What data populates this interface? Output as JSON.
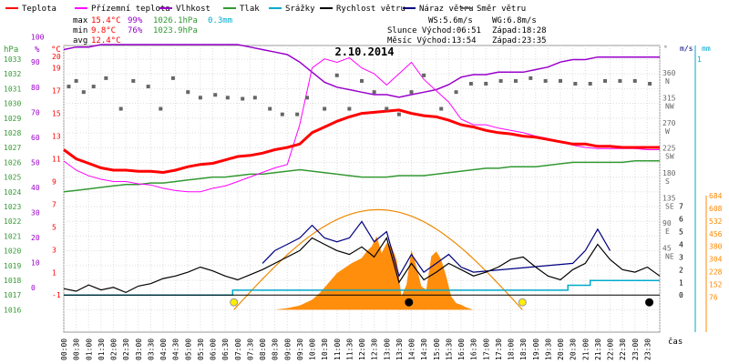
{
  "chart_data": {
    "type": "line",
    "title": "2.10.2014",
    "xlabel": "čas",
    "x_range_hours": [
      0,
      24
    ],
    "x_ticks": [
      "00:00",
      "00:30",
      "01:00",
      "01:30",
      "02:00",
      "02:30",
      "03:00",
      "03:30",
      "04:00",
      "04:30",
      "05:00",
      "05:30",
      "06:00",
      "06:30",
      "07:00",
      "07:30",
      "08:00",
      "08:30",
      "09:00",
      "09:30",
      "10:00",
      "10:30",
      "11:00",
      "11:30",
      "12:00",
      "12:30",
      "13:00",
      "13:30",
      "14:00",
      "14:30",
      "15:00",
      "15:30",
      "16:00",
      "16:30",
      "17:00",
      "17:30",
      "18:00",
      "18:30",
      "19:00",
      "19:30",
      "20:00",
      "20:30",
      "21:00",
      "21:30",
      "22:00",
      "22:30",
      "23:00",
      "23:30"
    ],
    "legend": [
      {
        "key": "teplota",
        "label": "Teplota",
        "color": "#ff0000"
      },
      {
        "key": "prizemni",
        "label": "Přízemní teplota",
        "color": "#ff00ff"
      },
      {
        "key": "vlhkost",
        "label": "Vlhkost",
        "color": "#9900cc"
      },
      {
        "key": "tlak",
        "label": "Tlak",
        "color": "#339933"
      },
      {
        "key": "srazky",
        "label": "Srážky",
        "color": "#00aacc"
      },
      {
        "key": "rychlost",
        "label": "Rychlost větru",
        "color": "#000000"
      },
      {
        "key": "naraz",
        "label": "Náraz větru",
        "color": "#000080"
      },
      {
        "key": "smer",
        "label": "Směr větru",
        "color": "#666666"
      }
    ],
    "stats": {
      "max": {
        "label": "max",
        "temp": "15.4°C",
        "hum": "99%",
        "press": "1026.1hPa",
        "rain": "0.3mm"
      },
      "min": {
        "label": "min",
        "temp": "9.8°C",
        "hum": "76%",
        "press": "1023.9hPa"
      },
      "avg": {
        "label": "avg",
        "temp": "12.4°C"
      }
    },
    "info": {
      "ws": "WS:5.6m/s",
      "wg": "WG:6.8m/s",
      "sun": "Slunce Východ:06:51",
      "sunset": "Západ:18:28",
      "moon": "Měsíc Východ:13:54",
      "moonset": "Západ:23:35"
    },
    "axes": {
      "hpa": {
        "label": "hPa",
        "ticks": [
          "1033",
          "1032",
          "1031",
          "1030",
          "1029",
          "1028",
          "1027",
          "1026",
          "1025",
          "1024",
          "1023",
          "1022",
          "1021",
          "1020",
          "1019",
          "1018",
          "1017",
          "1016"
        ],
        "range": [
          1016,
          1033
        ]
      },
      "pct": {
        "label": "%",
        "ticks": [
          "100",
          "90",
          "80",
          "70",
          "60",
          "50",
          "40",
          "30",
          "20",
          "10",
          "0"
        ],
        "range": [
          0,
          100
        ]
      },
      "deg": {
        "label": "°C",
        "ticks": [
          "20",
          "19",
          "17",
          "15",
          "13",
          "11",
          "9",
          "7",
          "5",
          "3",
          "1",
          "-1"
        ],
        "range": [
          -1,
          20
        ]
      },
      "dir": {
        "label": "°",
        "ticks": [
          [
            "360",
            "N"
          ],
          [
            "315",
            "NW"
          ],
          [
            "270",
            "W"
          ],
          [
            "225",
            "SW"
          ],
          [
            "180",
            "S"
          ],
          [
            "135",
            "SE"
          ],
          [
            "90",
            "E"
          ],
          [
            "45",
            "NE"
          ]
        ]
      },
      "ms": {
        "label": "m/s",
        "ticks": [
          "7",
          "6",
          "5",
          "4",
          "3",
          "2",
          "1",
          "0"
        ],
        "range": [
          0,
          7
        ]
      },
      "mm": {
        "label": "mm",
        "ticks": [
          "1"
        ]
      },
      "rad": {
        "ticks": [
          "684",
          "608",
          "532",
          "456",
          "380",
          "304",
          "228",
          "152",
          "76"
        ],
        "range": [
          0,
          684
        ]
      }
    },
    "series": {
      "teplota": {
        "x": [
          0,
          0.5,
          1,
          1.5,
          2,
          2.5,
          3,
          3.5,
          4,
          4.5,
          5,
          5.5,
          6,
          6.5,
          7,
          7.5,
          8,
          8.5,
          9,
          9.5,
          10,
          10.5,
          11,
          11.5,
          12,
          12.5,
          13,
          13.5,
          14,
          14.5,
          15,
          15.5,
          16,
          16.5,
          17,
          17.5,
          18,
          18.5,
          19,
          19.5,
          20,
          20.5,
          21,
          21.5,
          22,
          22.5,
          23,
          23.5,
          24
        ],
        "y": [
          11.8,
          11.0,
          10.6,
          10.2,
          10.0,
          10.0,
          9.9,
          9.9,
          9.8,
          10.0,
          10.3,
          10.5,
          10.6,
          10.9,
          11.2,
          11.3,
          11.5,
          11.8,
          12.0,
          12.3,
          13.3,
          13.8,
          14.3,
          14.7,
          15.0,
          15.1,
          15.2,
          15.3,
          15.0,
          14.8,
          14.7,
          14.4,
          14.0,
          13.8,
          13.5,
          13.3,
          13.2,
          13.0,
          12.9,
          12.7,
          12.5,
          12.3,
          12.3,
          12.1,
          12.1,
          12.0,
          12.0,
          12.0,
          12.0
        ]
      },
      "prizemni": {
        "x": [
          0,
          0.5,
          1,
          1.5,
          2,
          2.5,
          3,
          3.5,
          4,
          4.5,
          5,
          5.5,
          6,
          6.5,
          7,
          7.5,
          8,
          8.5,
          9,
          9.5,
          10,
          10.5,
          11,
          11.5,
          12,
          12.5,
          13,
          13.5,
          14,
          14.5,
          15,
          15.5,
          16,
          16.5,
          17,
          17.5,
          18,
          18.5,
          19,
          19.5,
          20,
          20.5,
          21,
          21.5,
          22,
          22.5,
          23,
          23.5,
          24
        ],
        "y": [
          10.8,
          10.0,
          9.5,
          9.2,
          9.0,
          9.0,
          8.8,
          8.7,
          8.4,
          8.2,
          8.1,
          8.1,
          8.4,
          8.6,
          9.0,
          9.4,
          9.8,
          10.2,
          10.5,
          14.0,
          19.0,
          19.8,
          19.5,
          19.9,
          19.0,
          18.5,
          17.5,
          18.5,
          19.5,
          18.0,
          17.0,
          16.0,
          14.5,
          14.0,
          14.0,
          13.7,
          13.5,
          13.3,
          13.0,
          12.8,
          12.5,
          12.2,
          12.0,
          11.9,
          11.9,
          11.9,
          11.9,
          11.8,
          11.8
        ]
      },
      "vlhkost": {
        "x": [
          0,
          0.5,
          1,
          1.5,
          2,
          2.5,
          3,
          3.5,
          4,
          4.5,
          5,
          5.5,
          6,
          6.5,
          7,
          7.5,
          8,
          8.5,
          9,
          9.5,
          10,
          10.5,
          11,
          11.5,
          12,
          12.5,
          13,
          13.5,
          14,
          14.5,
          15,
          15.5,
          16,
          16.5,
          17,
          17.5,
          18,
          18.5,
          19,
          19.5,
          20,
          20.5,
          21,
          21.5,
          22,
          22.5,
          23,
          23.5,
          24
        ],
        "y": [
          95,
          96,
          96,
          97,
          97,
          97,
          97,
          97,
          97,
          97,
          97,
          97,
          97,
          97,
          97,
          96,
          95,
          94,
          93,
          90,
          86,
          82,
          80,
          79,
          78,
          77,
          77,
          76,
          77,
          78,
          79,
          81,
          84,
          85,
          85,
          86,
          86,
          86,
          87,
          88,
          90,
          91,
          91,
          92,
          92,
          92,
          92,
          92,
          92
        ]
      },
      "tlak": {
        "x": [
          0,
          0.5,
          1,
          1.5,
          2,
          2.5,
          3,
          3.5,
          4,
          4.5,
          5,
          5.5,
          6,
          6.5,
          7,
          7.5,
          8,
          8.5,
          9,
          9.5,
          10,
          10.5,
          11,
          11.5,
          12,
          12.5,
          13,
          13.5,
          14,
          14.5,
          15,
          15.5,
          16,
          16.5,
          17,
          17.5,
          18,
          18.5,
          19,
          19.5,
          20,
          20.5,
          21,
          21.5,
          22,
          22.5,
          23,
          23.5,
          24
        ],
        "y": [
          1024.0,
          1024.1,
          1024.2,
          1024.3,
          1024.4,
          1024.5,
          1024.5,
          1024.6,
          1024.6,
          1024.7,
          1024.8,
          1024.9,
          1025.0,
          1025.0,
          1025.1,
          1025.2,
          1025.2,
          1025.3,
          1025.4,
          1025.5,
          1025.4,
          1025.3,
          1025.2,
          1025.1,
          1025.0,
          1025.0,
          1025.0,
          1025.1,
          1025.1,
          1025.1,
          1025.2,
          1025.3,
          1025.4,
          1025.5,
          1025.6,
          1025.6,
          1025.7,
          1025.7,
          1025.7,
          1025.8,
          1025.9,
          1026.0,
          1026.0,
          1026.0,
          1026.0,
          1026.0,
          1026.1,
          1026.1,
          1026.1
        ]
      },
      "srazky": {
        "x": [
          0,
          6.8,
          6.8,
          20.3,
          20.3,
          21.2,
          21.2,
          24
        ],
        "y": [
          0,
          0,
          0.1,
          0.1,
          0.2,
          0.2,
          0.3,
          0.3
        ]
      },
      "rychlost": {
        "x": [
          0,
          0.5,
          1,
          1.5,
          2,
          2.5,
          3,
          3.5,
          4,
          4.5,
          5,
          5.5,
          6,
          6.5,
          7,
          7.5,
          8,
          8.5,
          9,
          9.5,
          10,
          10.5,
          11,
          11.5,
          12,
          12.5,
          13,
          13.5,
          14,
          14.5,
          15,
          15.5,
          16,
          16.5,
          17,
          17.5,
          18,
          18.5,
          19,
          19.5,
          20,
          20.5,
          21,
          21.5,
          22,
          22.5,
          23,
          23.5,
          24
        ],
        "y": [
          0.5,
          0.3,
          0.8,
          0.4,
          0.6,
          0.2,
          0.7,
          0.9,
          1.3,
          1.5,
          1.8,
          2.2,
          1.9,
          1.5,
          1.2,
          1.6,
          2.0,
          2.5,
          3.0,
          3.5,
          4.5,
          4.0,
          3.5,
          3.2,
          3.8,
          3.0,
          4.5,
          1.0,
          2.5,
          1.2,
          1.8,
          2.5,
          2.0,
          1.5,
          1.8,
          2.2,
          2.8,
          3.0,
          2.2,
          1.5,
          1.2,
          2.0,
          2.5,
          4.0,
          2.8,
          2.0,
          1.8,
          2.2,
          1.5
        ]
      },
      "naraz": {
        "x": [
          8,
          8.5,
          9,
          9.5,
          10,
          10.5,
          11,
          11.5,
          12,
          12.5,
          13,
          13.5,
          14,
          14.5,
          15,
          15.5,
          16,
          16.5,
          20.5,
          21,
          21.5,
          22
        ],
        "y": [
          2.5,
          3.5,
          4.0,
          4.5,
          5.5,
          4.5,
          4.2,
          4.5,
          5.8,
          4.2,
          5.0,
          1.5,
          3.2,
          1.8,
          2.5,
          3.2,
          2.2,
          1.8,
          2.5,
          3.5,
          5.2,
          3.5
        ]
      },
      "smer_points": {
        "x": [
          0.2,
          0.5,
          0.8,
          1.2,
          1.7,
          2.3,
          2.8,
          3.4,
          3.9,
          4.4,
          5.0,
          5.5,
          6.1,
          6.6,
          7.2,
          7.7,
          8.3,
          8.8,
          9.4,
          9.8,
          10.5,
          11.0,
          11.5,
          12.0,
          12.5,
          13.0,
          13.5,
          14.0,
          14.5,
          15.2,
          15.8,
          16.4,
          17.0,
          17.6,
          18.2,
          18.8,
          19.4,
          20.0,
          20.6,
          21.2,
          21.8,
          22.4,
          23.0,
          23.6
        ],
        "y": [
          340,
          350,
          330,
          340,
          355,
          300,
          350,
          340,
          300,
          355,
          330,
          320,
          325,
          320,
          318,
          320,
          300,
          290,
          290,
          320,
          300,
          360,
          300,
          350,
          330,
          300,
          290,
          330,
          360,
          300,
          330,
          345,
          345,
          350,
          350,
          355,
          350,
          350,
          345,
          345,
          350,
          350,
          350,
          345
        ]
      },
      "radiace": {
        "x": [
          0,
          8.5,
          9,
          9.5,
          10,
          10.3,
          10.6,
          11,
          11.3,
          11.6,
          12,
          12.2,
          12.4,
          12.6,
          12.8,
          13,
          13.2,
          13.4,
          13.6,
          13.8,
          14,
          14.2,
          14.4,
          14.6,
          14.8,
          15,
          15.2,
          15.4,
          15.6,
          15.8,
          16,
          16.2,
          16.5,
          24
        ],
        "y": [
          0,
          0,
          10,
          25,
          60,
          100,
          150,
          220,
          250,
          280,
          310,
          350,
          380,
          440,
          340,
          400,
          380,
          300,
          80,
          150,
          360,
          260,
          140,
          120,
          320,
          350,
          300,
          200,
          80,
          40,
          30,
          15,
          0,
          0
        ]
      }
    },
    "sun_curve_peak_wm2": 600,
    "sunrise_h": 6.85,
    "sunset_h": 18.47,
    "moonrise_h": 13.9,
    "moonset_h": 23.58
  }
}
